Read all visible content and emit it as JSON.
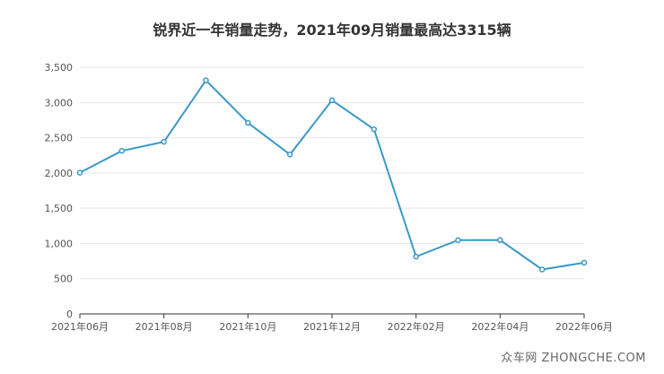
{
  "title": "锐界近一年销量走势，2021年09月销量最高达3315辆",
  "watermark": "众车网 ZHONGCHE.COM",
  "colors": {
    "line": "#3a98c9",
    "grid": "#e6e6e6",
    "axis": "#333333",
    "text": "#555555"
  },
  "chart_data": {
    "type": "line",
    "title": "锐界近一年销量走势，2021年09月销量最高达3315辆",
    "x": [
      "2021-06",
      "2021-07",
      "2021-08",
      "2021-09",
      "2021-10",
      "2021-11",
      "2021-12",
      "2022-01",
      "2022-02",
      "2022-03",
      "2022-04",
      "2022-05",
      "2022-06"
    ],
    "x_tick_labels": [
      "2021年06月",
      "",
      "2021年08月",
      "",
      "2021年10月",
      "",
      "2021年12月",
      "",
      "2022年02月",
      "",
      "2022年04月",
      "",
      "2022年06月"
    ],
    "series": [
      {
        "values": [
          2004,
          2314,
          2442,
          3315,
          2712,
          2262,
          3032,
          2620,
          813,
          1047,
          1048,
          630,
          727
        ]
      }
    ],
    "yticks": [
      "0",
      "500",
      "1,000",
      "1,500",
      "2,000",
      "2,500",
      "3,000",
      "3,500"
    ],
    "ylim": [
      0,
      3500
    ],
    "grid": true
  }
}
